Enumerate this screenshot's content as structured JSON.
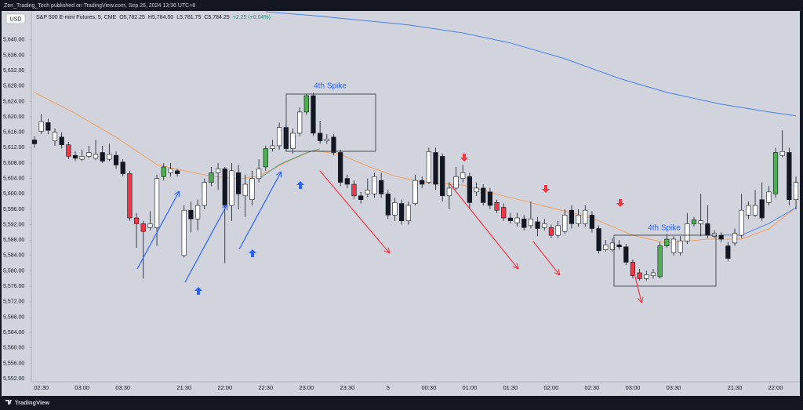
{
  "publisher": "Zen_Trading_Tech published on TradingView.com, Sep 26, 2024 13:36 UTC+8",
  "currency": "USD",
  "legend": {
    "symbol": "S&P 500 E-mini Futures, 5, CME",
    "open": "O5,782.25",
    "high": "H5,784.50",
    "low": "L5,781.75",
    "close": "C5,784.25",
    "change": "+2.25 (+0.04%)"
  },
  "annotations": [
    "4th Spike",
    "4th Spike"
  ],
  "footer": "TradingView",
  "chart_data": {
    "type": "candlestick",
    "categories": [
      null,
      "02:30",
      null,
      null,
      null,
      null,
      null,
      "03:00",
      null,
      null,
      null,
      null,
      null,
      "03:30",
      null,
      null,
      null,
      null,
      null,
      null,
      null,
      null,
      "21:30",
      null,
      null,
      null,
      null,
      null,
      "22:00",
      null,
      null,
      null,
      null,
      null,
      "22:30",
      null,
      null,
      null,
      null,
      null,
      "23:00",
      null,
      null,
      null,
      null,
      null,
      "23:30",
      null,
      null,
      null,
      null,
      null,
      "5",
      null,
      null,
      null,
      null,
      null,
      "00:30",
      null,
      null,
      null,
      null,
      null,
      "01:00",
      null,
      null,
      null,
      null,
      null,
      "01:30",
      null,
      null,
      null,
      null,
      null,
      "02:00",
      null,
      null,
      null,
      null,
      null,
      "02:30",
      null,
      null,
      null,
      null,
      null,
      "03:00",
      null,
      null,
      null,
      null,
      null,
      "03:30",
      null,
      null,
      null,
      null,
      null,
      null,
      null,
      null,
      "21:30",
      null,
      null,
      null,
      null,
      null,
      "22:00",
      null,
      null,
      null
    ],
    "series": {
      "open": [
        5614,
        5616.25,
        5618.5,
        5613.75,
        5614.75,
        5612.75,
        5610,
        5609,
        5609.75,
        5609.25,
        5610.75,
        5609,
        5610,
        5608.25,
        5605.25,
        5593.75,
        5592.25,
        5591.25,
        5591.25,
        5604.5,
        5605.5,
        5606,
        5584,
        5595.75,
        5593.5,
        5597,
        5603,
        5605.5,
        5606.5,
        5597,
        5605.5,
        5599.5,
        5598.5,
        5604,
        5607,
        5611.75,
        5612.5,
        5617.25,
        5611.75,
        5615.75,
        5621.25,
        5625.5,
        5615.75,
        5613.75,
        5614.75,
        5610.75,
        5604,
        5602.5,
        5599.5,
        5600,
        5600,
        5603.5,
        5600,
        5594.5,
        5597.5,
        5593,
        5597.5,
        5603.5,
        5603,
        5610.75,
        5609.75,
        5599.5,
        5601.5,
        5604,
        5604.5,
        5600.5,
        5601.5,
        5600.5,
        5597.75,
        5596.5,
        5593.75,
        5592.5,
        5593.5,
        5591.75,
        5592.75,
        5591.25,
        5591.25,
        5589.25,
        5590.25,
        5595.75,
        5592.25,
        5592.25,
        5594.5,
        5591,
        5585.5,
        5585.5,
        5586.75,
        5586.25,
        5582.25,
        5579.5,
        5578,
        5578.75,
        5578.5,
        5586.5,
        5584.75,
        5584.75,
        5587.75,
        5592.25,
        5592.25,
        5592.25,
        5589,
        5589.25,
        5586.5,
        5587.25,
        5589.25,
        5594.5,
        5594.5,
        5598.5,
        5597.75,
        5600,
        5610,
        5610.75,
        5598.5
      ],
      "high": [
        5615,
        5620.75,
        5619.5,
        5617,
        5616,
        5613.5,
        5611,
        5611.5,
        5612.5,
        5614,
        5612.5,
        5613,
        5611,
        5609,
        5606,
        5595,
        5593,
        5595.5,
        5605,
        5608,
        5608,
        5606.5,
        5597,
        5598,
        5598.5,
        5604,
        5607,
        5608,
        5607,
        5608,
        5607.5,
        5605,
        5606,
        5609,
        5612.5,
        5614,
        5618.5,
        5618,
        5617,
        5622.5,
        5626,
        5626.25,
        5619,
        5615.5,
        5615.5,
        5611.5,
        5605,
        5603.5,
        5600.5,
        5604,
        5605.5,
        5605.5,
        5601,
        5599,
        5598.5,
        5598,
        5605,
        5604.5,
        5612,
        5612,
        5610.5,
        5603,
        5607,
        5607.5,
        5605.5,
        5603,
        5602.5,
        5601.5,
        5598.5,
        5597.5,
        5595,
        5595,
        5594.5,
        5598,
        5594,
        5593.5,
        5592,
        5593,
        5596,
        5597,
        5596,
        5597,
        5595.5,
        5591.75,
        5588,
        5588.5,
        5588,
        5587,
        5583,
        5580.5,
        5580,
        5580.5,
        5587.5,
        5589.5,
        5589,
        5589,
        5595,
        5594,
        5600,
        5597,
        5590.5,
        5590,
        5587.5,
        5591,
        5600,
        5598,
        5601,
        5603,
        5602,
        5612,
        5616.5,
        5612,
        5604.5
      ],
      "low": [
        5612,
        5615.5,
        5615.5,
        5612.5,
        5611.75,
        5609,
        5608.5,
        5608.5,
        5609.25,
        5608.75,
        5608,
        5608.5,
        5606.5,
        5604.5,
        5593,
        5586,
        5578,
        5590.5,
        5586.5,
        5603.5,
        5604.5,
        5604.5,
        5583.5,
        5590,
        5590.5,
        5596,
        5602,
        5601,
        5582,
        5593,
        5596,
        5594,
        5597,
        5603,
        5606,
        5611,
        5611.5,
        5611,
        5610.5,
        5615,
        5620.5,
        5615,
        5613,
        5613,
        5610,
        5602,
        5601.5,
        5598.75,
        5597.5,
        5599.25,
        5599,
        5599,
        5593.5,
        5593,
        5592,
        5592,
        5597,
        5601.5,
        5602.5,
        5601,
        5598,
        5596,
        5601,
        5603,
        5596,
        5599.5,
        5597,
        5596,
        5595,
        5593,
        5592.25,
        5591.5,
        5590.5,
        5591,
        5589,
        5590.5,
        5588.5,
        5588.5,
        5589.5,
        5591,
        5591.5,
        5591.5,
        5590,
        5584.5,
        5585,
        5585,
        5585.5,
        5581.5,
        5578,
        5577.5,
        5577.5,
        5578,
        5578,
        5586,
        5584,
        5584,
        5587,
        5591.5,
        5589,
        5588.5,
        5588.5,
        5587.5,
        5582.5,
        5586.5,
        5588.5,
        5593.5,
        5594,
        5593,
        5597,
        5599,
        5609.5,
        5597,
        5596
      ],
      "close": [
        5613,
        5618.75,
        5616.5,
        5616,
        5612.75,
        5609.75,
        5609.25,
        5609.75,
        5610.75,
        5610.25,
        5608.5,
        5610.25,
        5607.5,
        5605.25,
        5593.75,
        5592.25,
        5590.25,
        5592.25,
        5604,
        5607,
        5606.5,
        5605.25,
        5595.75,
        5593.5,
        5597,
        5603,
        5605.5,
        5606.5,
        5597,
        5606,
        5600,
        5602.5,
        5604,
        5606.5,
        5611.75,
        5612.5,
        5617.25,
        5611.75,
        5615.75,
        5621.25,
        5625.5,
        5615.75,
        5613.75,
        5614.25,
        5610.75,
        5603,
        5602.5,
        5599.5,
        5598.5,
        5601,
        5604.5,
        5600,
        5594.5,
        5597.75,
        5593,
        5597,
        5603.5,
        5602.5,
        5611,
        5602.5,
        5599.5,
        5601.5,
        5604.5,
        5605.5,
        5597.75,
        5601.5,
        5597.75,
        5597,
        5595.75,
        5593.75,
        5593,
        5593.75,
        5591.25,
        5593.5,
        5591,
        5592.25,
        5589.25,
        5591.75,
        5594.5,
        5592.25,
        5594.5,
        5595.75,
        5591,
        5585.25,
        5586.75,
        5587.25,
        5586.25,
        5582.25,
        5578.75,
        5578,
        5579,
        5579.5,
        5586.5,
        5588.25,
        5588.25,
        5587.75,
        5592.25,
        5593.25,
        5593,
        5589.25,
        5589.75,
        5588.25,
        5583.25,
        5589.75,
        5595.75,
        5597,
        5597,
        5593.75,
        5600.5,
        5610.75,
        5611,
        5598.5,
        5603
      ],
      "colors": [
        "#131722",
        "#ffffff",
        "#131722",
        "#ffffff",
        "#131722",
        "#f23645",
        "#131722",
        "#ffffff",
        "#ffffff",
        "#ffffff",
        "#131722",
        "#ffffff",
        "#131722",
        "#131722",
        "#f23645",
        "#f23645",
        "#f23645",
        "#ffffff",
        "#ffffff",
        "#4caf50",
        "#ffffff",
        "#131722",
        "#ffffff",
        "#131722",
        "#ffffff",
        "#ffffff",
        "#4caf50",
        "#ffffff",
        "#131722",
        "#ffffff",
        "#131722",
        "#ffffff",
        "#ffffff",
        "#ffffff",
        "#4caf50",
        "#ffffff",
        "#ffffff",
        "#131722",
        "#ffffff",
        "#ffffff",
        "#4caf50",
        "#131722",
        "#131722",
        "#ffffff",
        "#131722",
        "#131722",
        "#131722",
        "#f23645",
        "#131722",
        "#ffffff",
        "#ffffff",
        "#131722",
        "#131722",
        "#ffffff",
        "#131722",
        "#ffffff",
        "#ffffff",
        "#131722",
        "#ffffff",
        "#131722",
        "#131722",
        "#ffffff",
        "#ffffff",
        "#ffffff",
        "#131722",
        "#ffffff",
        "#131722",
        "#131722",
        "#f23645",
        "#f23645",
        "#131722",
        "#ffffff",
        "#131722",
        "#ffffff",
        "#131722",
        "#ffffff",
        "#f23645",
        "#ffffff",
        "#ffffff",
        "#131722",
        "#ffffff",
        "#ffffff",
        "#131722",
        "#131722",
        "#ffffff",
        "#ffffff",
        "#131722",
        "#131722",
        "#f23645",
        "#f23645",
        "#ffffff",
        "#ffffff",
        "#4caf50",
        "#4caf50",
        "#ffffff",
        "#ffffff",
        "#ffffff",
        "#4caf50",
        "#ffffff",
        "#131722",
        "#ffffff",
        "#131722",
        "#131722",
        "#ffffff",
        "#ffffff",
        "#ffffff",
        "#ffffff",
        "#131722",
        "#ffffff",
        "#4caf50",
        "#ffffff",
        "#131722",
        "#ffffff"
      ]
    },
    "overlays": [
      {
        "color": "#4a7fe8",
        "x": [
          34,
          41,
          48,
          55,
          63,
          70,
          78,
          86,
          93,
          101,
          108,
          112
        ],
        "values": [
          5647.3,
          5646.3,
          5645.1,
          5643.9,
          5641.8,
          5639.2,
          5635.1,
          5630,
          5626.35,
          5623.3,
          5621.3,
          5620.25
        ]
      },
      {
        "color": "#f2a05e",
        "x": [
          0,
          6,
          12,
          18,
          22,
          26,
          30,
          33,
          37,
          41,
          45,
          49,
          53,
          57,
          63,
          69,
          76,
          82,
          88,
          93,
          99,
          104,
          108,
          112
        ],
        "values": [
          5626.35,
          5620.9,
          5614.75,
          5607.6,
          5606,
          5604.6,
          5603.9,
          5604.6,
          5608.2,
          5611.3,
          5610.25,
          5607.2,
          5604.6,
          5603.1,
          5602.3,
          5599.5,
          5596.4,
          5593.75,
          5589.25,
          5587.25,
          5588.25,
          5588.25,
          5590.9,
          5596.4
        ]
      },
      {
        "color": "#5a9e8c",
        "x": [
          33,
          36,
          40,
          42
        ],
        "values": [
          5603.9,
          5607.6,
          5610.7,
          5611.7
        ]
      },
      {
        "color": "#4a7fe8",
        "x": [
          101,
          104,
          108,
          112
        ],
        "values": [
          5589.3,
          5589.3,
          5592.3,
          5596.4
        ]
      }
    ],
    "ylim": [
      5551.2,
      5647.5
    ],
    "yticks": [
      {
        "value": 5552,
        "label": "5,552.00"
      },
      {
        "value": 5556,
        "label": "5,556.00"
      },
      {
        "value": 5560,
        "label": "5,560.00"
      },
      {
        "value": 5564,
        "label": "5,564.00"
      },
      {
        "value": 5568,
        "label": "5,568.00"
      },
      {
        "value": 5572,
        "label": "5,572.00"
      },
      {
        "value": 5576,
        "label": "5,576.00"
      },
      {
        "value": 5580,
        "label": "5,580.00"
      },
      {
        "value": 5584,
        "label": "5,584.00"
      },
      {
        "value": 5588,
        "label": "5,588.00"
      },
      {
        "value": 5592,
        "label": "5,592.00"
      },
      {
        "value": 5596,
        "label": "5,596.00"
      },
      {
        "value": 5600,
        "label": "5,600.00"
      },
      {
        "value": 5604,
        "label": "5,604.00"
      },
      {
        "value": 5608,
        "label": "5,608.00"
      },
      {
        "value": 5612,
        "label": "5,612.00"
      },
      {
        "value": 5616,
        "label": "5,616.00"
      },
      {
        "value": 5620,
        "label": "5,620.00"
      },
      {
        "value": 5624,
        "label": "5,624.00"
      },
      {
        "value": 5628,
        "label": "5,628.00"
      },
      {
        "value": 5632,
        "label": "5,632.00"
      },
      {
        "value": 5636,
        "label": "5,636.00"
      },
      {
        "value": 5640,
        "label": "5,640.00"
      }
    ],
    "grid": false
  }
}
